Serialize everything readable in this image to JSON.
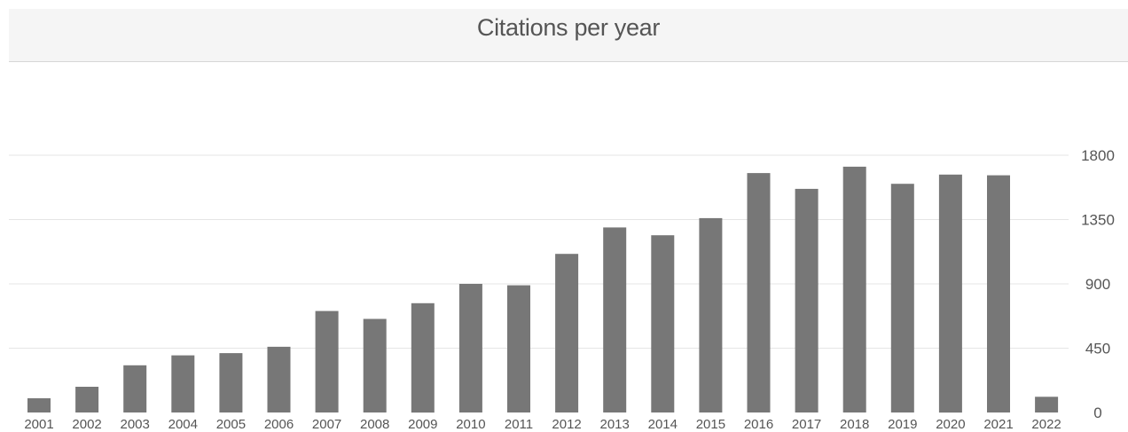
{
  "header": {
    "title": "Citations per year"
  },
  "colors": {
    "bar": "#777777",
    "grid": "#e5e5e5",
    "header_bg": "#f5f5f5",
    "text": "#555555"
  },
  "chart_data": {
    "type": "bar",
    "title": "Citations per year",
    "xlabel": "",
    "ylabel": "",
    "categories": [
      "2001",
      "2002",
      "2003",
      "2004",
      "2005",
      "2006",
      "2007",
      "2008",
      "2009",
      "2010",
      "2011",
      "2012",
      "2013",
      "2014",
      "2015",
      "2016",
      "2017",
      "2018",
      "2019",
      "2020",
      "2021",
      "2022"
    ],
    "values": [
      100,
      180,
      330,
      400,
      415,
      460,
      710,
      655,
      765,
      900,
      890,
      1110,
      1295,
      1240,
      1360,
      1675,
      1565,
      1720,
      1600,
      1665,
      1660,
      110
    ],
    "yticks": [
      0,
      450,
      900,
      1350,
      1800
    ],
    "ylim": [
      0,
      1800
    ],
    "y_axis_side": "right",
    "grid": true,
    "legend": "none"
  }
}
